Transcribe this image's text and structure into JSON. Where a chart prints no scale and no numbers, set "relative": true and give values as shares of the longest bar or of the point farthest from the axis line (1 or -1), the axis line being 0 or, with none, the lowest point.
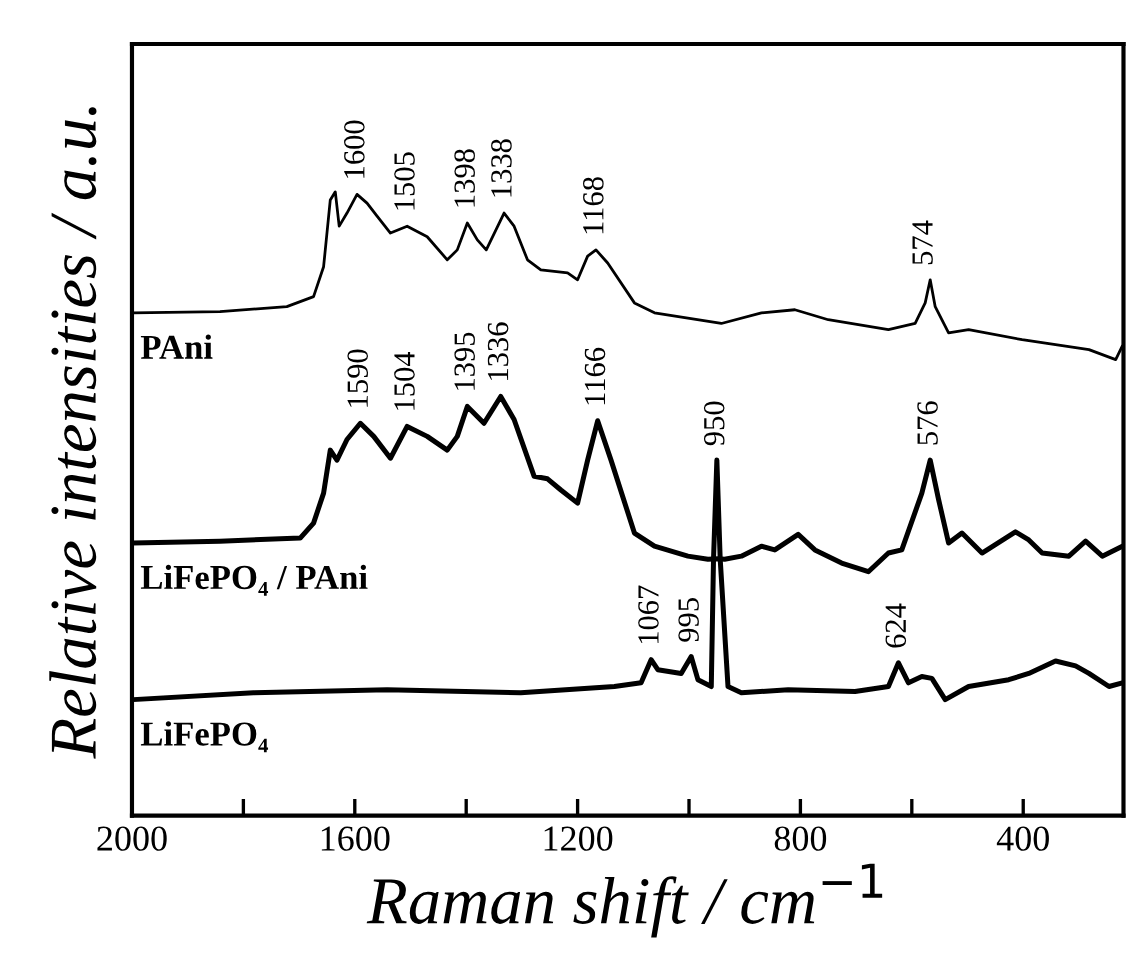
{
  "chart_data": {
    "type": "line",
    "relative": true,
    "xlabel": "Raman shift / cm$^{−1}$",
    "ylabel": "Relative intensities / a.u.",
    "xlim": [
      2000,
      220
    ],
    "xticks": [
      2000,
      {
        "value": 1800,
        "label": null
      },
      1600,
      {
        "value": 1400,
        "label": null
      },
      1200,
      {
        "value": 1000,
        "label": null
      },
      800,
      {
        "value": 600,
        "label": null
      },
      400
    ],
    "grid": false,
    "legend": false,
    "marker": "none",
    "line_style": "solid",
    "series": [
      {
        "name": "PAni",
        "color": "#000000",
        "x": [
          1998,
          1842,
          1722,
          1674,
          1656,
          1644,
          1635,
          1628,
          1614,
          1596,
          1578,
          1560,
          1536,
          1506,
          1470,
          1434,
          1416,
          1398,
          1380,
          1364,
          1332,
          1314,
          1290,
          1266,
          1218,
          1200,
          1182,
          1167,
          1146,
          1098,
          1062,
          942,
          870,
          810,
          750,
          642,
          594,
          576,
          567,
          558,
          534,
          498,
          402,
          282,
          234,
          222
        ],
        "values": [
          0.806,
          0.808,
          0.816,
          0.832,
          0.88,
          0.987,
          1.0,
          0.945,
          0.966,
          0.996,
          0.982,
          0.961,
          0.934,
          0.945,
          0.928,
          0.891,
          0.907,
          0.95,
          0.923,
          0.907,
          0.966,
          0.945,
          0.891,
          0.875,
          0.87,
          0.859,
          0.897,
          0.907,
          0.886,
          0.822,
          0.806,
          0.789,
          0.806,
          0.811,
          0.795,
          0.779,
          0.789,
          0.822,
          0.859,
          0.816,
          0.774,
          0.779,
          0.763,
          0.747,
          0.731,
          0.753
        ]
      },
      {
        "name": "LiFePO₄ / PAni",
        "color": "#000000",
        "x": [
          1998,
          1842,
          1698,
          1674,
          1656,
          1644,
          1632,
          1614,
          1590,
          1566,
          1536,
          1506,
          1470,
          1434,
          1416,
          1398,
          1368,
          1338,
          1314,
          1278,
          1254,
          1230,
          1200,
          1182,
          1164,
          1140,
          1098,
          1062,
          1002,
          966,
          948,
          936,
          906,
          870,
          846,
          804,
          774,
          726,
          678,
          642,
          618,
          582,
          567,
          552,
          534,
          510,
          474,
          414,
          390,
          366,
          318,
          288,
          258,
          222
        ],
        "values": [
          0.437,
          0.44,
          0.445,
          0.469,
          0.517,
          0.586,
          0.57,
          0.603,
          0.629,
          0.608,
          0.573,
          0.624,
          0.608,
          0.586,
          0.608,
          0.656,
          0.629,
          0.672,
          0.635,
          0.544,
          0.54,
          0.522,
          0.501,
          0.57,
          0.633,
          0.57,
          0.453,
          0.432,
          0.416,
          0.411,
          0.412,
          0.411,
          0.416,
          0.432,
          0.426,
          0.451,
          0.426,
          0.405,
          0.391,
          0.421,
          0.426,
          0.517,
          0.57,
          0.507,
          0.437,
          0.453,
          0.421,
          0.455,
          0.442,
          0.421,
          0.416,
          0.44,
          0.416,
          0.432
        ]
      },
      {
        "name": "LiFePO₄",
        "color": "#000000",
        "x": [
          1998,
          1782,
          1542,
          1302,
          1134,
          1086,
          1068,
          1056,
          1014,
          996,
          984,
          960,
          956,
          950,
          944,
          930,
          906,
          822,
          702,
          642,
          624,
          606,
          582,
          564,
          540,
          498,
          426,
          390,
          342,
          306,
          282,
          246,
          222
        ],
        "values": [
          0.186,
          0.197,
          0.202,
          0.197,
          0.207,
          0.213,
          0.25,
          0.234,
          0.228,
          0.255,
          0.218,
          0.207,
          0.411,
          0.57,
          0.411,
          0.207,
          0.197,
          0.202,
          0.199,
          0.207,
          0.245,
          0.213,
          0.223,
          0.22,
          0.186,
          0.207,
          0.218,
          0.228,
          0.248,
          0.24,
          0.228,
          0.207,
          0.213
        ]
      }
    ],
    "annotations": [
      {
        "text": "1600",
        "x": 1596,
        "y": 0.996
      },
      {
        "text": "1505",
        "x": 1506,
        "y": 0.945
      },
      {
        "text": "1398",
        "x": 1398,
        "y": 0.95
      },
      {
        "text": "1338",
        "x": 1332,
        "y": 0.966
      },
      {
        "text": "1168",
        "x": 1167,
        "y": 0.907
      },
      {
        "text": "574",
        "x": 576,
        "y": 0.859
      },
      {
        "text": "1590",
        "x": 1590,
        "y": 0.629
      },
      {
        "text": "1504",
        "x": 1506,
        "y": 0.624
      },
      {
        "text": "1395",
        "x": 1398,
        "y": 0.656
      },
      {
        "text": "1336",
        "x": 1338,
        "y": 0.672
      },
      {
        "text": "1166",
        "x": 1164,
        "y": 0.633
      },
      {
        "text": "576",
        "x": 567,
        "y": 0.57
      },
      {
        "text": "950",
        "x": 950,
        "y": 0.57
      },
      {
        "text": "1067",
        "x": 1068,
        "y": 0.25
      },
      {
        "text": "995",
        "x": 996,
        "y": 0.255
      },
      {
        "text": "624",
        "x": 624,
        "y": 0.245
      }
    ]
  }
}
